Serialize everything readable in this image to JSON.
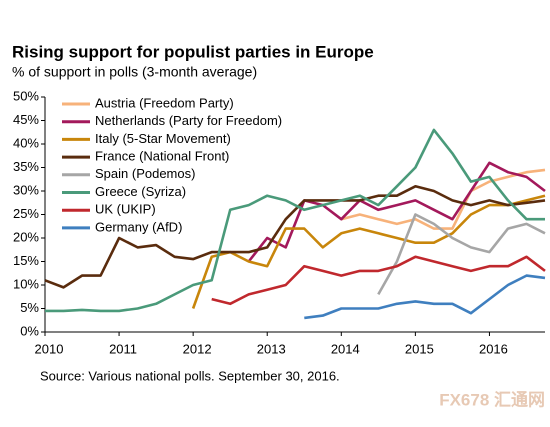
{
  "chart_data": {
    "type": "line",
    "title": "Rising support for populist parties in Europe",
    "subtitle": "% of support in polls (3-month average)",
    "source": "Source: Various national polls. September 30, 2016.",
    "watermark": "FX678 汇通网",
    "legend": "upper left",
    "xlim": [
      2010,
      2016.75
    ],
    "xticks": [
      2010,
      2011,
      2012,
      2013,
      2014,
      2015,
      2016
    ],
    "ylim": [
      0,
      50
    ],
    "yticks": [
      {
        "value": 0,
        "label": "0%"
      },
      {
        "value": 5,
        "label": "5%"
      },
      {
        "value": 10,
        "label": "10%"
      },
      {
        "value": 15,
        "label": "15%"
      },
      {
        "value": 20,
        "label": "20%"
      },
      {
        "value": 25,
        "label": "25%"
      },
      {
        "value": 30,
        "label": "30%"
      },
      {
        "value": 35,
        "label": "35%"
      },
      {
        "value": 40,
        "label": "40%"
      },
      {
        "value": 45,
        "label": "45%"
      },
      {
        "value": 50,
        "label": "50%"
      }
    ],
    "x": [
      2010,
      2010.25,
      2010.5,
      2010.75,
      2011,
      2011.25,
      2011.5,
      2011.75,
      2012,
      2012.25,
      2012.5,
      2012.75,
      2013,
      2013.25,
      2013.5,
      2013.75,
      2014,
      2014.25,
      2014.5,
      2014.75,
      2015,
      2015.25,
      2015.5,
      2015.75,
      2016,
      2016.25,
      2016.5,
      2016.75
    ],
    "series": [
      {
        "name": "Austria (Freedom Party)",
        "color": "#f7b27a",
        "values": [
          null,
          null,
          null,
          null,
          null,
          null,
          null,
          null,
          null,
          null,
          null,
          null,
          null,
          null,
          null,
          null,
          24,
          25,
          24,
          23,
          24,
          22,
          22,
          30,
          32,
          33,
          34,
          34.5
        ]
      },
      {
        "name": "Netherlands (Party for Freedom)",
        "color": "#a3195b",
        "values": [
          null,
          null,
          null,
          null,
          null,
          null,
          null,
          null,
          null,
          null,
          null,
          15,
          20,
          18,
          28,
          27,
          24,
          28,
          26,
          27,
          28,
          26,
          24,
          30,
          36,
          34,
          33,
          30
        ]
      },
      {
        "name": "Italy (5-Star Movement)",
        "color": "#c8860b",
        "values": [
          null,
          null,
          null,
          null,
          null,
          null,
          null,
          null,
          5,
          16,
          17,
          15,
          14,
          22,
          22,
          18,
          21,
          22,
          21,
          20,
          19,
          19,
          21,
          25,
          27,
          27,
          28,
          29
        ]
      },
      {
        "name": "France (National Front)",
        "color": "#5a2c0e",
        "values": [
          11,
          9.5,
          12,
          12,
          20,
          18,
          18.5,
          16,
          15.5,
          17,
          17,
          17,
          18,
          24,
          28,
          28,
          28,
          28,
          29,
          29,
          31,
          30,
          28,
          27,
          28,
          27,
          27.5,
          28
        ]
      },
      {
        "name": "Spain (Podemos)",
        "color": "#a6a6a6",
        "values": [
          null,
          null,
          null,
          null,
          null,
          null,
          null,
          null,
          null,
          null,
          null,
          null,
          null,
          null,
          null,
          null,
          null,
          null,
          8,
          15,
          25,
          23,
          20,
          18,
          17,
          22,
          23,
          21
        ]
      },
      {
        "name": "Greece (Syriza)",
        "color": "#4a9a7a",
        "values": [
          4.5,
          4.5,
          4.7,
          4.5,
          4.5,
          5,
          6,
          8,
          10,
          11,
          26,
          27,
          29,
          28,
          26,
          27,
          28,
          29,
          27,
          31,
          35,
          43,
          38,
          32,
          33,
          28,
          24,
          24
        ]
      },
      {
        "name": "UK (UKIP)",
        "color": "#c0282d",
        "values": [
          null,
          null,
          null,
          null,
          null,
          null,
          null,
          null,
          null,
          7,
          6,
          8,
          9,
          10,
          14,
          13,
          12,
          13,
          13,
          14,
          16,
          15,
          14,
          13,
          14,
          14,
          16,
          13
        ]
      },
      {
        "name": "Germany (AfD)",
        "color": "#3f7fbf",
        "values": [
          null,
          null,
          null,
          null,
          null,
          null,
          null,
          null,
          null,
          null,
          null,
          null,
          null,
          null,
          3,
          3.5,
          5,
          5,
          5,
          6,
          6.5,
          6,
          6,
          4,
          7,
          10,
          12,
          11.5
        ]
      }
    ]
  }
}
